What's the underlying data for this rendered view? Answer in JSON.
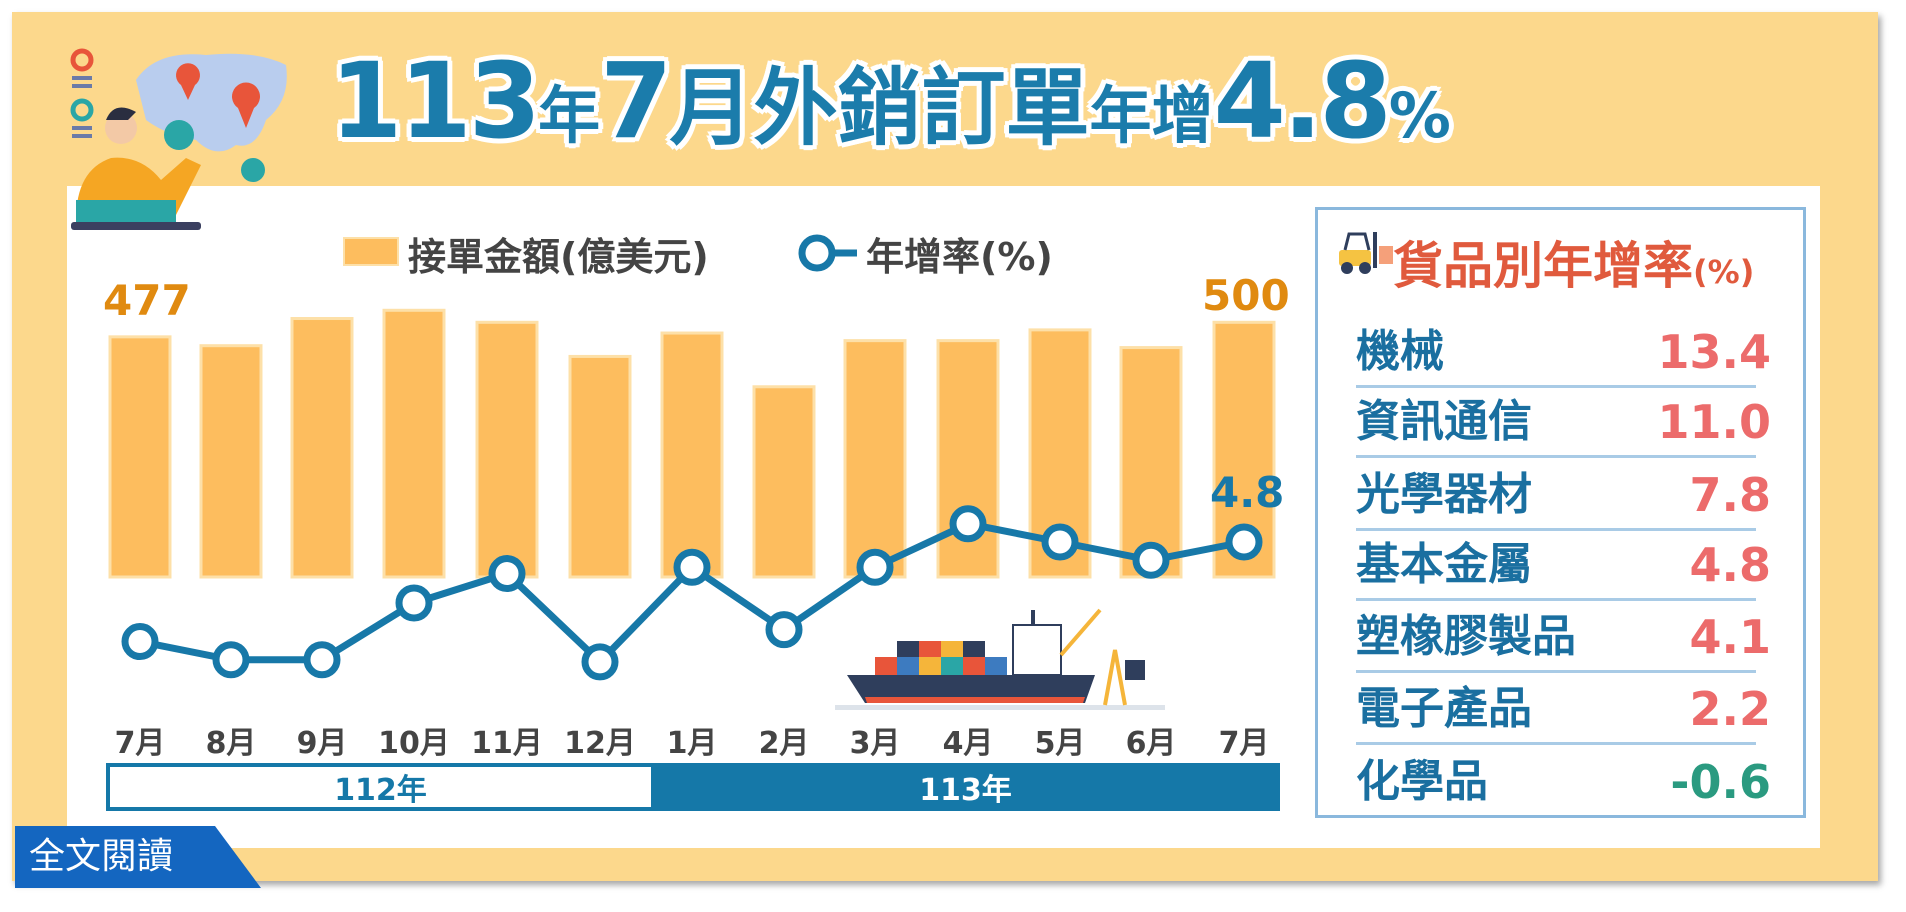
{
  "title": {
    "year": "113",
    "year_unit": "年",
    "month": "7",
    "month_unit": "月",
    "subject": "外銷訂單",
    "growth_prefix": "年增",
    "growth_value": "4.8",
    "percent": "%"
  },
  "legend": {
    "bar_label": "接單金額(億美元)",
    "line_label": "年增率(%)"
  },
  "chart_data": {
    "type": "bar+line",
    "categories": [
      "7月",
      "8月",
      "9月",
      "10月",
      "11月",
      "12月",
      "1月",
      "2月",
      "3月",
      "4月",
      "5月",
      "6月",
      "7月"
    ],
    "series": [
      {
        "name": "接單金額(億美元)",
        "type": "bar",
        "values": [
          477,
          463,
          506,
          519,
          500,
          446,
          483,
          398,
          471,
          471,
          488,
          460,
          500
        ]
      },
      {
        "name": "年增率(%)",
        "type": "line",
        "values": [
          -9.4,
          -12.0,
          -12.0,
          -3.9,
          0.3,
          -12.3,
          1.2,
          -7.7,
          1.2,
          7.4,
          4.8,
          2.2,
          4.8
        ]
      }
    ],
    "data_labels": {
      "first_bar": "477",
      "last_bar": "500",
      "last_line": "4.8"
    },
    "year_groups": [
      {
        "label": "112年",
        "span": 6
      },
      {
        "label": "113年",
        "span": 7
      }
    ],
    "colors": {
      "bar": "#fdbd5e",
      "line": "#1778a8",
      "bar_label": "#e08a10"
    }
  },
  "product_panel": {
    "title": "貨品別年增率",
    "unit": "(%)",
    "rows": [
      {
        "label": "機械",
        "value": "13.4"
      },
      {
        "label": "資訊通信",
        "value": "11.0"
      },
      {
        "label": "光學器材",
        "value": "7.8"
      },
      {
        "label": "基本金屬",
        "value": "4.8"
      },
      {
        "label": "塑橡膠製品",
        "value": "4.1"
      },
      {
        "label": "電子產品",
        "value": "2.2"
      },
      {
        "label": "化學品",
        "value": "-0.6"
      }
    ],
    "colors": {
      "positive": "#ec6b6b",
      "negative": "#2a9a80"
    }
  },
  "read_more": "全文閱讀"
}
